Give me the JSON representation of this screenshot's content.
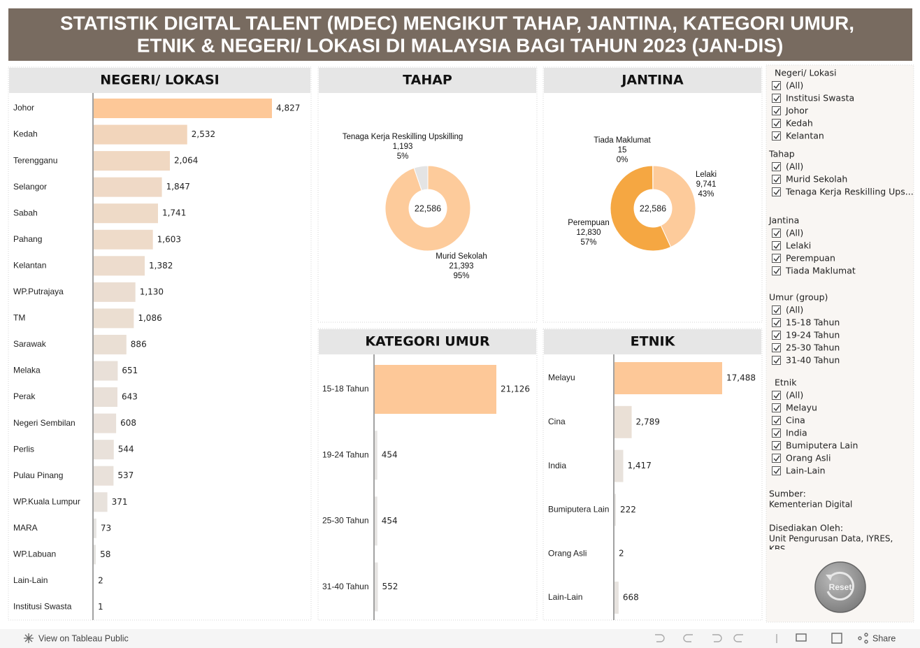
{
  "header": {
    "title_lines": [
      "STATISTIK DIGITAL TALENT (MDEC) MENGIKUT TAHAP, JANTINA, KATEGORI UMUR,",
      "ETNIK & NEGERI/ LOKASI DI MALAYSIA BAGI TAHUN 2023 (JAN-DIS)"
    ]
  },
  "chart_data": [
    {
      "type": "bar",
      "title": "NEGERI/ LOKASI",
      "categories": [
        "Johor",
        "Kedah",
        "Terengganu",
        "Selangor",
        "Sabah",
        "Pahang",
        "Kelantan",
        "WP.Putrajaya",
        "TM",
        "Sarawak",
        "Melaka",
        "Perak",
        "Negeri Sembilan",
        "Perlis",
        "Pulau Pinang",
        "WP.Kuala Lumpur",
        "MARA",
        "WP.Labuan",
        "Lain-Lain",
        "Institusi Swasta"
      ],
      "values": [
        4827,
        2532,
        2064,
        1847,
        1741,
        1603,
        1382,
        1130,
        1086,
        886,
        651,
        643,
        608,
        544,
        537,
        371,
        73,
        58,
        2,
        1
      ],
      "value_labels": [
        "4,827",
        "2,532",
        "2,064",
        "1,847",
        "1,741",
        "1,603",
        "1,382",
        "1,130",
        "1,086",
        "886",
        "651",
        "643",
        "608",
        "544",
        "537",
        "371",
        "73",
        "58",
        "2",
        "1"
      ],
      "color_range": [
        "#e6e4e2",
        "#fdc898"
      ]
    },
    {
      "type": "pie",
      "title": "TAHAP",
      "center_label": "22,586",
      "categories": [
        "Murid Sekolah",
        "Tenaga Kerja Reskilling Upskilling"
      ],
      "values": [
        21393,
        1193
      ],
      "value_labels": [
        "21,393",
        "1,193"
      ],
      "percent_labels": [
        "95%",
        "5%"
      ],
      "colors": [
        "#fdcb9b",
        "#e4e4e4"
      ]
    },
    {
      "type": "pie",
      "title": "JANTINA",
      "center_label": "22,586",
      "categories": [
        "Lelaki",
        "Perempuan",
        "Tiada Maklumat"
      ],
      "values": [
        9741,
        12830,
        15
      ],
      "value_labels": [
        "9,741",
        "12,830",
        "15"
      ],
      "percent_labels": [
        "43%",
        "57%",
        "0%"
      ],
      "colors": [
        "#fdcb9b",
        "#f5a742",
        "#e4e4e4"
      ]
    },
    {
      "type": "bar",
      "title": "KATEGORI UMUR",
      "categories": [
        "15-18 Tahun",
        "19-24 Tahun",
        "25-30 Tahun",
        "31-40 Tahun"
      ],
      "values": [
        21126,
        454,
        454,
        552
      ],
      "value_labels": [
        "21,126",
        "454",
        "454",
        "552"
      ],
      "color_range": [
        "#e6e4e2",
        "#fdc898"
      ]
    },
    {
      "type": "bar",
      "title": "ETNIK",
      "categories": [
        "Melayu",
        "Cina",
        "India",
        "Bumiputera Lain",
        "Orang Asli",
        "Lain-Lain"
      ],
      "values": [
        17488,
        2789,
        1417,
        222,
        2,
        668
      ],
      "value_labels": [
        "17,488",
        "2,789",
        "1,417",
        "222",
        "2",
        "668"
      ],
      "color_range": [
        "#e6e4e2",
        "#fdc898"
      ]
    }
  ],
  "filters": [
    {
      "title": "Negeri/ Lokasi",
      "options": [
        "(All)",
        "Institusi Swasta",
        "Johor",
        "Kedah",
        "Kelantan"
      ]
    },
    {
      "title": "Tahap",
      "options": [
        "(All)",
        "Murid Sekolah",
        "Tenaga Kerja Reskilling Ups..."
      ]
    },
    {
      "title": "Jantina",
      "options": [
        "(All)",
        "Lelaki",
        "Perempuan",
        "Tiada Maklumat"
      ]
    },
    {
      "title": "Umur (group)",
      "options": [
        "(All)",
        "15-18 Tahun",
        "19-24 Tahun",
        "25-30 Tahun",
        "31-40 Tahun"
      ]
    },
    {
      "title": "Etnik",
      "options": [
        "(All)",
        "Melayu",
        "Cina",
        "India",
        "Bumiputera Lain",
        "Orang Asli",
        "Lain-Lain"
      ]
    }
  ],
  "source": {
    "label": "Sumber:",
    "text": "Kementerian Digital"
  },
  "prepared": {
    "label": "Disediakan Oleh:",
    "text": "Unit Pengurusan Data, IYRES, KBS"
  },
  "reset": "Reset",
  "footer": {
    "view": "View on Tableau Public",
    "share": "Share"
  }
}
